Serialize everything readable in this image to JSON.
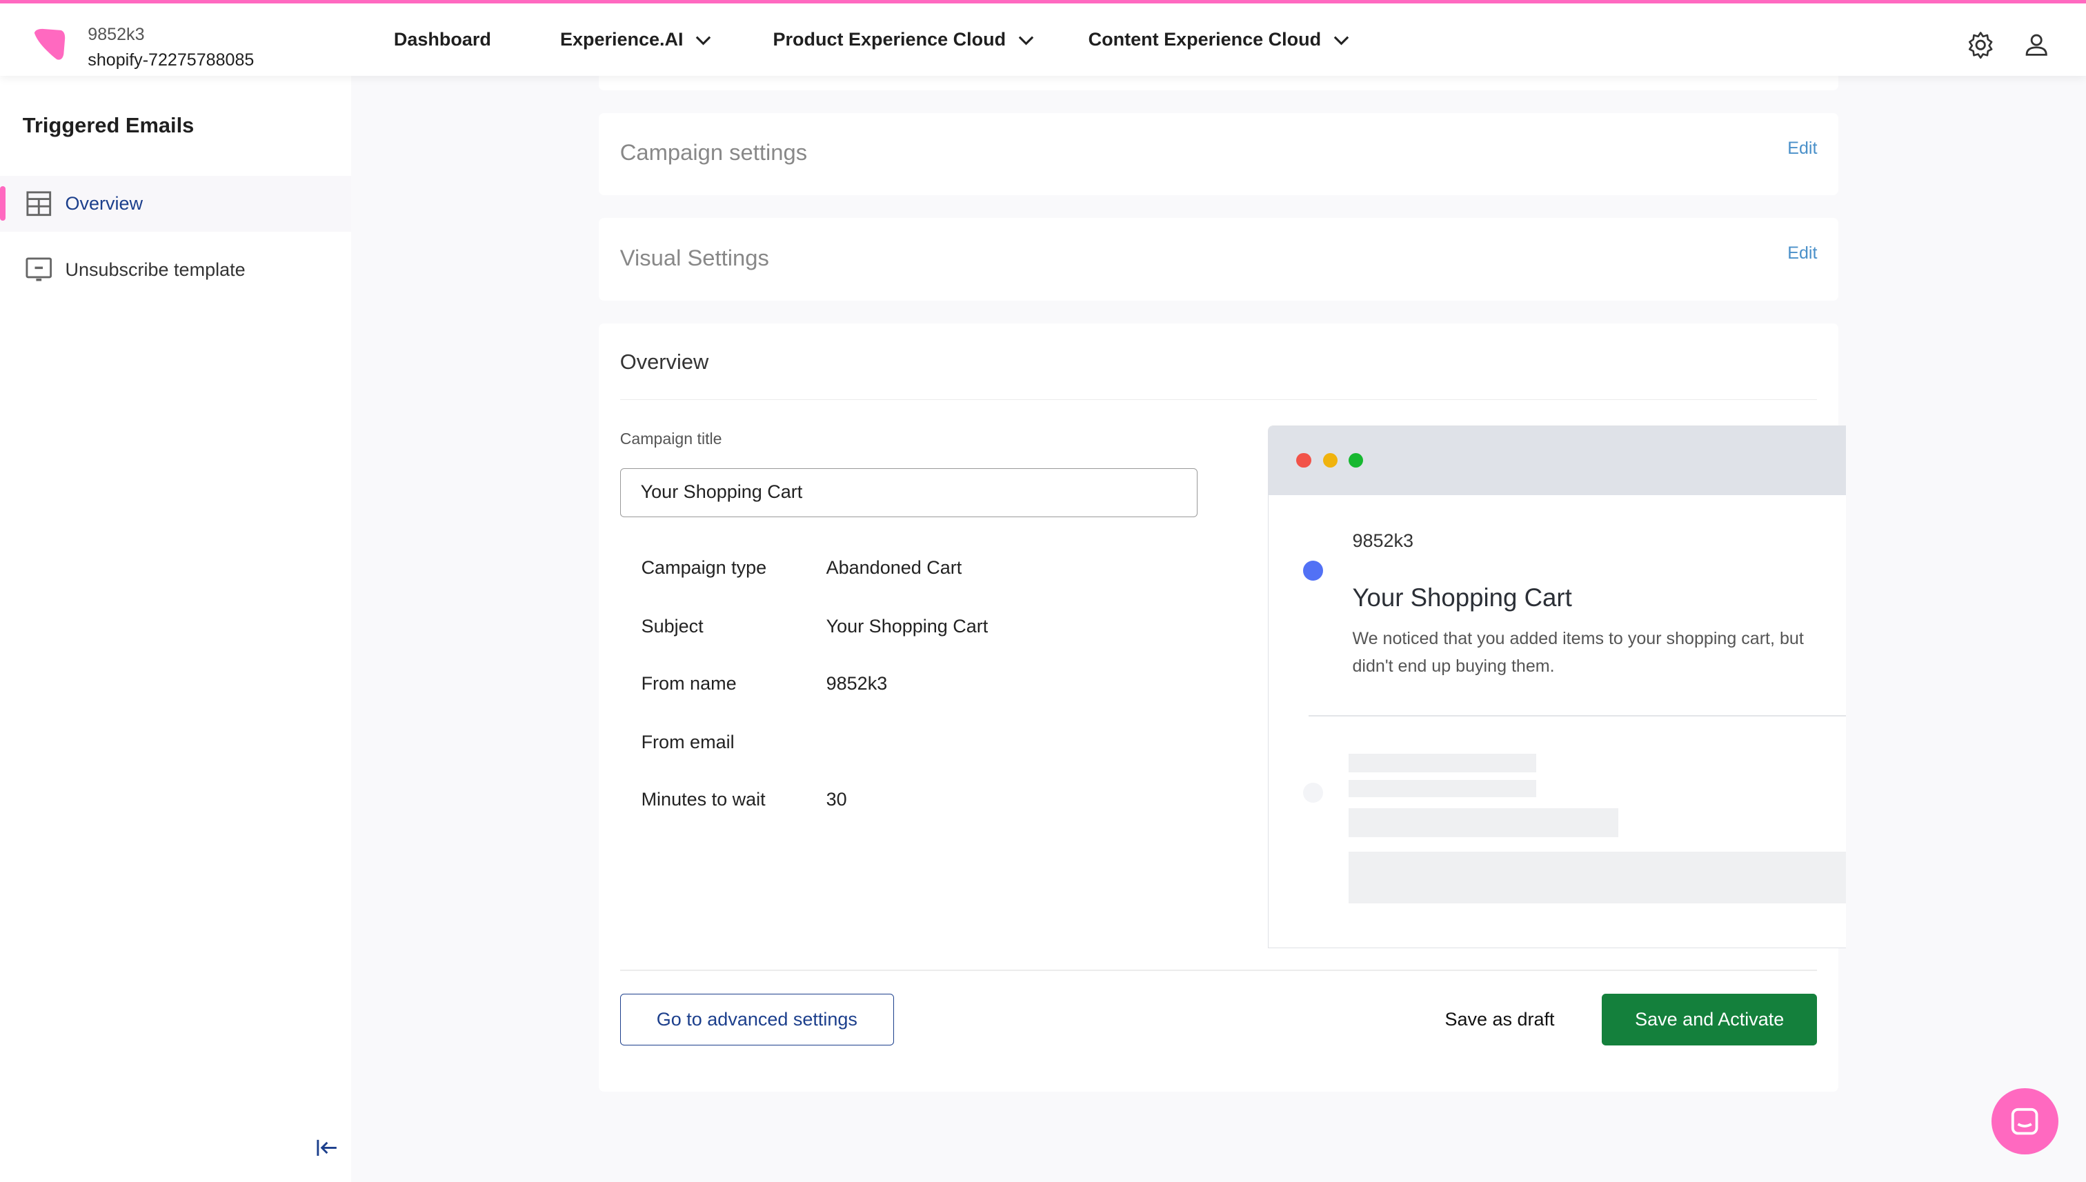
{
  "header": {
    "account_name": "9852k3",
    "store_id": "shopify-72275788085",
    "nav": [
      {
        "label": "Dashboard"
      },
      {
        "label": "Experience.AI"
      },
      {
        "label": "Product Experience Cloud"
      },
      {
        "label": "Content Experience Cloud"
      }
    ],
    "brand_color": "#ff69c0"
  },
  "sidebar": {
    "title": "Triggered Emails",
    "items": [
      {
        "label": "Overview",
        "icon": "table-icon",
        "active": true
      },
      {
        "label": "Unsubscribe template",
        "icon": "monitor-icon",
        "active": false
      }
    ]
  },
  "sections": {
    "campaign_settings": {
      "title": "Campaign settings",
      "edit": "Edit"
    },
    "visual_settings": {
      "title": "Visual Settings",
      "edit": "Edit"
    }
  },
  "overview": {
    "title": "Overview",
    "campaign_title_label": "Campaign title",
    "campaign_title_value": "Your Shopping Cart",
    "fields": [
      {
        "key": "Campaign type",
        "value": "Abandoned Cart"
      },
      {
        "key": "Subject",
        "value": "Your Shopping Cart"
      },
      {
        "key": "From name",
        "value": "9852k3"
      },
      {
        "key": "From email",
        "value": ""
      },
      {
        "key": "Minutes to wait",
        "value": "30"
      }
    ],
    "preview": {
      "sender": "9852k3",
      "subject": "Your Shopping Cart",
      "body": "We noticed that you added items to your shopping cart, but didn't end up buying them."
    },
    "advanced_button": "Go to advanced settings",
    "draft_button": "Save as draft",
    "activate_button": "Save and Activate"
  }
}
